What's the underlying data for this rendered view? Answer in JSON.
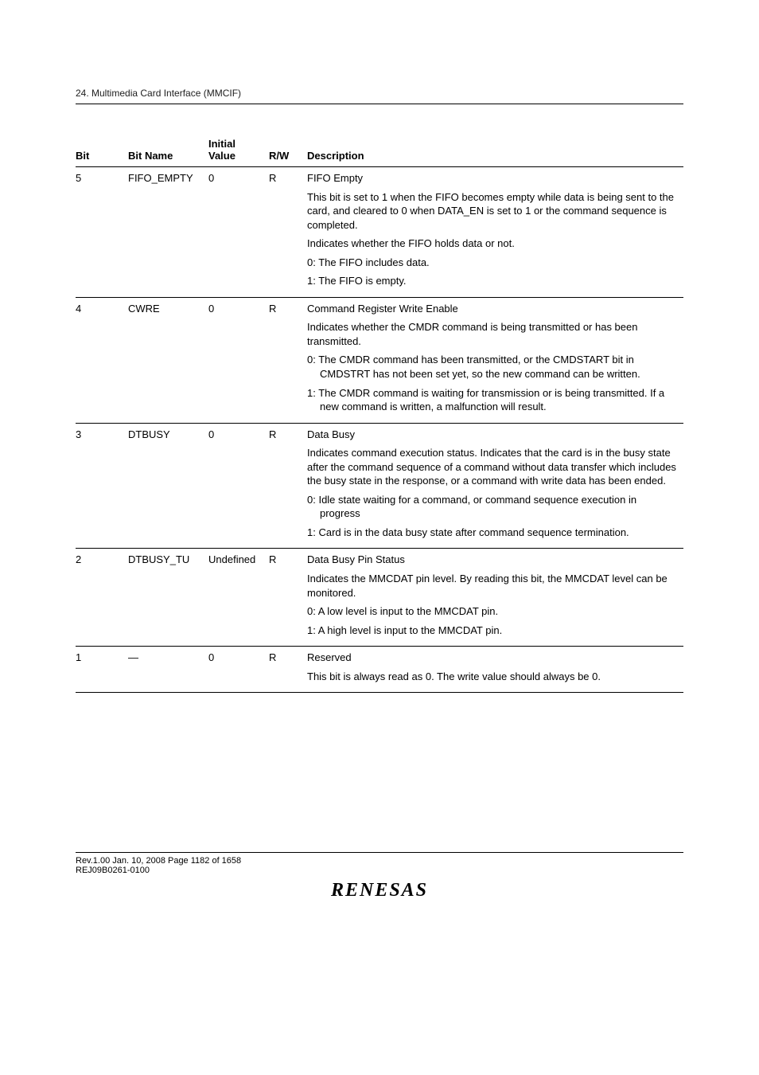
{
  "header": {
    "section_title": "24.  Multimedia Card Interface (MMCIF)"
  },
  "table": {
    "headers": {
      "bit": "Bit",
      "bit_name": "Bit Name",
      "initial_value_line1": "Initial",
      "initial_value_line2": "Value",
      "rw": "R/W",
      "description": "Description"
    },
    "rows": [
      {
        "bit": "5",
        "bit_name": "FIFO_EMPTY",
        "initial_value": "0",
        "rw": "R",
        "desc": [
          "FIFO Empty",
          "This bit is set to 1 when the FIFO becomes empty while data is being sent to the card, and cleared to 0 when DATA_EN is set to 1 or the command sequence is completed.",
          "Indicates whether the FIFO holds data or not.",
          "0: The FIFO includes data.",
          "1: The FIFO is empty."
        ]
      },
      {
        "bit": "4",
        "bit_name": "CWRE",
        "initial_value": "0",
        "rw": "R",
        "desc": [
          "Command Register Write Enable",
          "Indicates whether the CMDR command is being transmitted or has been transmitted.",
          "0: The CMDR command has been transmitted, or the CMDSTART bit in CMDSTRT has not been set yet, so the new command can be written.",
          "1: The CMDR command is waiting for transmission or is being transmitted. If a new command is written, a malfunction will result."
        ],
        "indent_idx": [
          2,
          3
        ]
      },
      {
        "bit": "3",
        "bit_name": "DTBUSY",
        "initial_value": "0",
        "rw": "R",
        "desc": [
          "Data Busy",
          "Indicates command execution status. Indicates that the card is in the busy state after the command sequence of a command without data transfer which includes the busy state in the response, or a command with write data has been ended.",
          "0: Idle state waiting for a command, or command sequence execution in progress",
          "1: Card is in the data busy state after command sequence termination."
        ],
        "indent_idx": [
          2,
          3
        ]
      },
      {
        "bit": "2",
        "bit_name": "DTBUSY_TU",
        "initial_value": "Undefined",
        "rw": "R",
        "desc": [
          "Data Busy Pin Status",
          "Indicates the MMCDAT pin level. By reading this bit, the MMCDAT level can be monitored.",
          "0: A low level is input to the MMCDAT pin.",
          "1: A high level is input to the MMCDAT pin."
        ]
      },
      {
        "bit": "1",
        "bit_name": "—",
        "initial_value": "0",
        "rw": "R",
        "desc": [
          "Reserved",
          "This bit is always read as 0. The write value should always be 0."
        ]
      }
    ]
  },
  "footer": {
    "line1": "Rev.1.00  Jan. 10, 2008  Page 1182 of 1658",
    "line2": "REJ09B0261-0100",
    "logo": "RENESAS"
  }
}
